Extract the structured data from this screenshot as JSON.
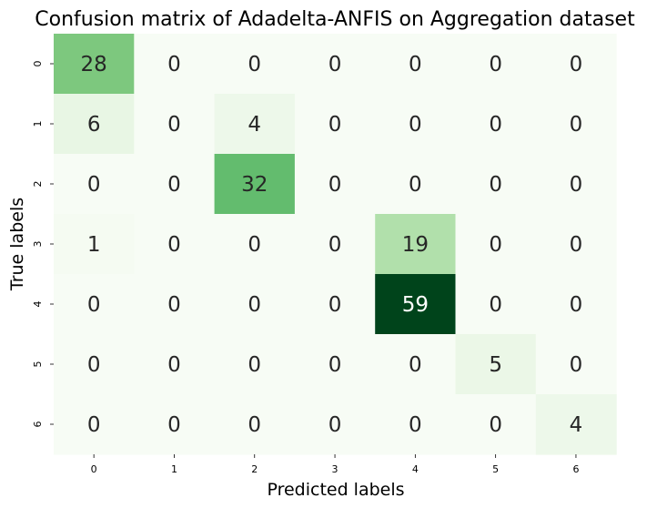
{
  "chart_data": {
    "type": "heatmap",
    "title": "Confusion matrix of Adadelta-ANFIS on Aggregation dataset",
    "xlabel": "Predicted labels",
    "ylabel": "True labels",
    "x_categories": [
      "0",
      "1",
      "2",
      "3",
      "4",
      "5",
      "6"
    ],
    "y_categories": [
      "0",
      "1",
      "2",
      "3",
      "4",
      "5",
      "6"
    ],
    "values": [
      [
        28,
        0,
        0,
        0,
        0,
        0,
        0
      ],
      [
        6,
        0,
        4,
        0,
        0,
        0,
        0
      ],
      [
        0,
        0,
        32,
        0,
        0,
        0,
        0
      ],
      [
        1,
        0,
        0,
        0,
        19,
        0,
        0
      ],
      [
        0,
        0,
        0,
        0,
        59,
        0,
        0
      ],
      [
        0,
        0,
        0,
        0,
        0,
        5,
        0
      ],
      [
        0,
        0,
        0,
        0,
        0,
        0,
        4
      ]
    ],
    "colormap": "Greens",
    "vmin": 0,
    "vmax": 59,
    "colorbar": false,
    "annotations": true,
    "grid": false
  }
}
